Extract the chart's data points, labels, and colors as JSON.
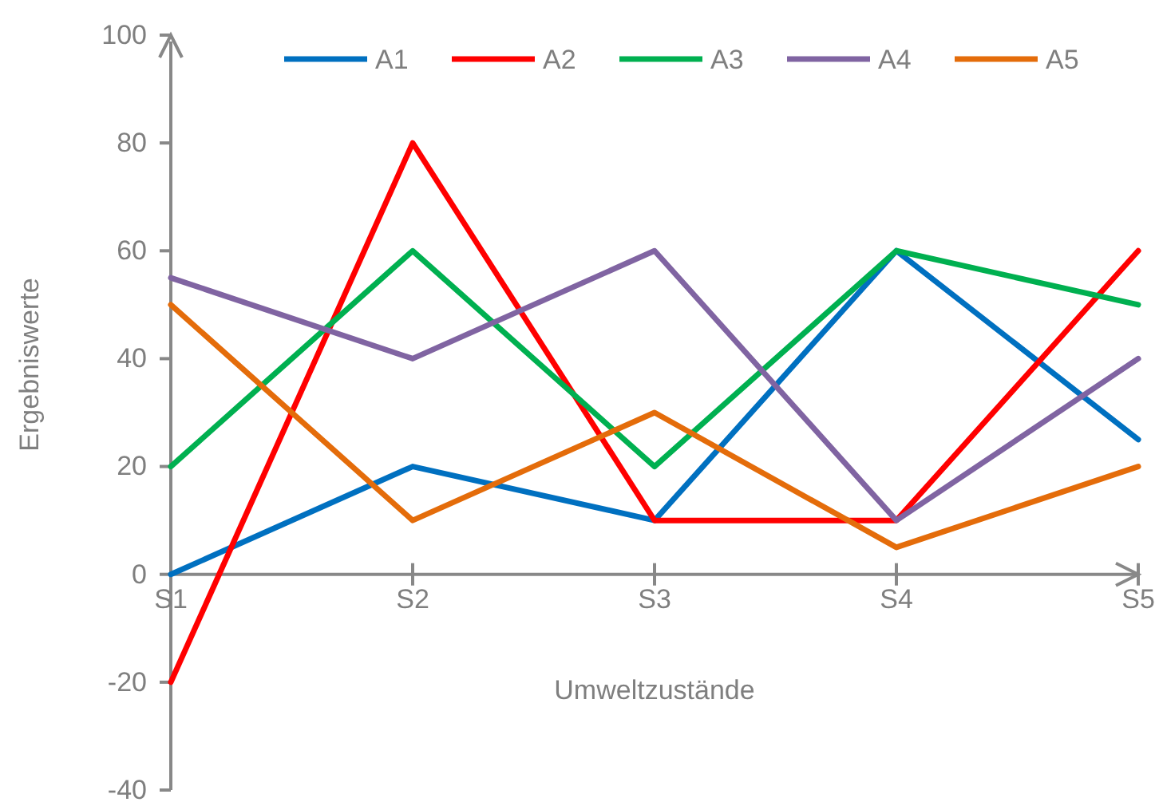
{
  "chart_data": {
    "type": "line",
    "xlabel": "Umweltzustände",
    "ylabel": "Ergebniswerte",
    "categories": [
      "S1",
      "S2",
      "S3",
      "S4",
      "S5"
    ],
    "series": [
      {
        "name": "A1",
        "color": "#0070c0",
        "values": [
          0,
          20,
          10,
          60,
          25
        ]
      },
      {
        "name": "A2",
        "color": "#ff0000",
        "values": [
          -20,
          80,
          10,
          10,
          60
        ]
      },
      {
        "name": "A3",
        "color": "#00b050",
        "values": [
          20,
          60,
          20,
          60,
          50
        ]
      },
      {
        "name": "A4",
        "color": "#8064a2",
        "values": [
          55,
          40,
          60,
          10,
          40
        ]
      },
      {
        "name": "A5",
        "color": "#e46c0a",
        "values": [
          50,
          10,
          30,
          5,
          20
        ]
      }
    ],
    "ylim": [
      -40,
      100
    ],
    "yticks": [
      -40,
      -20,
      0,
      20,
      40,
      60,
      80,
      100
    ],
    "grid": false,
    "legend": "top",
    "marker": "none",
    "line_style": "solid"
  }
}
